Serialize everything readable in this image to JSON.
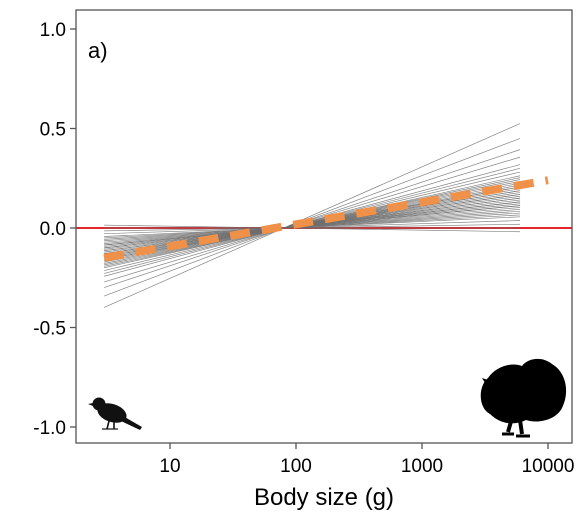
{
  "chart_data": {
    "type": "line",
    "panel_label": "a)",
    "xlabel": "Body size (g)",
    "ylabel": "",
    "x_scale": "log",
    "xlim": [
      2,
      15000
    ],
    "ylim": [
      -1.05,
      1.05
    ],
    "x_ticks": [
      10,
      100,
      1000,
      10000
    ],
    "x_tick_labels": [
      "10",
      "100",
      "1000",
      "10000"
    ],
    "y_ticks": [
      1.0,
      0.5,
      0.0,
      -0.5,
      -1.0
    ],
    "y_tick_labels": [
      "1.0",
      "0.5",
      "0.0",
      "-0.5",
      "-1.0"
    ],
    "grid": false,
    "reference_line": {
      "y": 0,
      "color": "#e3262b"
    },
    "mean_line": {
      "color": "#f0914a",
      "style": "dashed",
      "x": [
        3,
        10000
      ],
      "y": [
        -0.15,
        0.24
      ]
    },
    "individual_lines": {
      "color": "#6e6e6e",
      "pivot_x": 80,
      "pivot_y": 0.0,
      "x_start": 3,
      "x_end": 6000,
      "slopes_per_decade": [
        -0.01,
        0.0,
        0.01,
        0.02,
        0.03,
        0.035,
        0.04,
        0.045,
        0.05,
        0.055,
        0.06,
        0.06,
        0.065,
        0.07,
        0.07,
        0.075,
        0.08,
        0.08,
        0.085,
        0.09,
        0.09,
        0.095,
        0.1,
        0.1,
        0.105,
        0.11,
        0.11,
        0.115,
        0.12,
        0.125,
        0.13,
        0.135,
        0.14,
        0.15,
        0.16,
        0.17,
        0.19,
        0.21,
        0.24,
        0.28
      ]
    },
    "icons": {
      "small": "small-bird-silhouette-icon",
      "large": "turkey-silhouette-icon"
    }
  }
}
